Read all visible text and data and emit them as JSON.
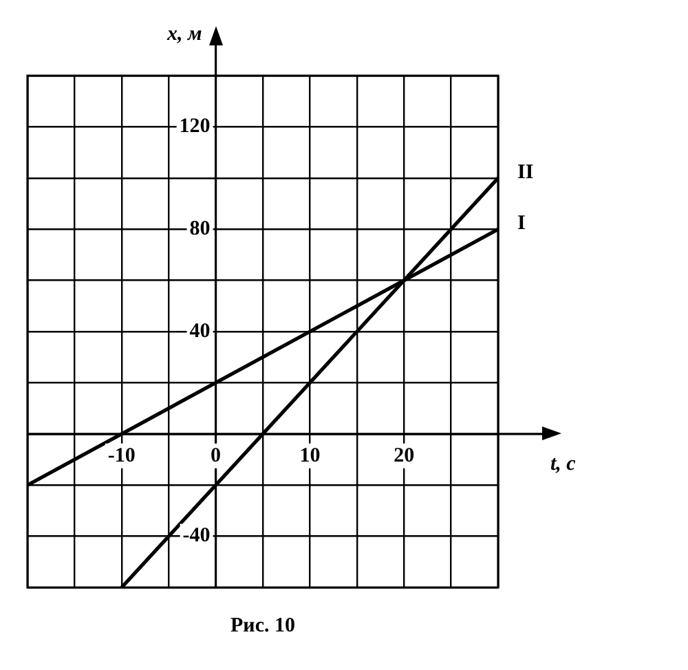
{
  "chart_data": {
    "type": "line",
    "title": "Рис. 10",
    "xlabel": "t, с",
    "ylabel": "x, м",
    "xlim": [
      -20,
      30
    ],
    "ylim": [
      -60,
      140
    ],
    "xticks": [
      {
        "value": -20,
        "label": null
      },
      {
        "value": -15,
        "label": null
      },
      -10,
      {
        "value": -5,
        "label": null
      },
      0,
      {
        "value": 5,
        "label": null
      },
      10,
      {
        "value": 15,
        "label": null
      },
      20,
      {
        "value": 25,
        "label": null
      },
      {
        "value": 30,
        "label": null
      }
    ],
    "yticks": [
      {
        "value": -60,
        "label": null
      },
      -40,
      {
        "value": -20,
        "label": null
      },
      {
        "value": 0,
        "label": null
      },
      {
        "value": 20,
        "label": null
      },
      40,
      {
        "value": 60,
        "label": null
      },
      80,
      {
        "value": 100,
        "label": null
      },
      120,
      {
        "value": 140,
        "label": null
      }
    ],
    "series": [
      {
        "name": "I",
        "color": "#000000",
        "x": [
          -20,
          30
        ],
        "values": [
          -20,
          80
        ]
      },
      {
        "name": "II",
        "color": "#000000",
        "x": [
          -10,
          30
        ],
        "values": [
          -60,
          100
        ]
      }
    ],
    "grid": true,
    "legend": false,
    "marker": "none",
    "line_style": "solid"
  }
}
